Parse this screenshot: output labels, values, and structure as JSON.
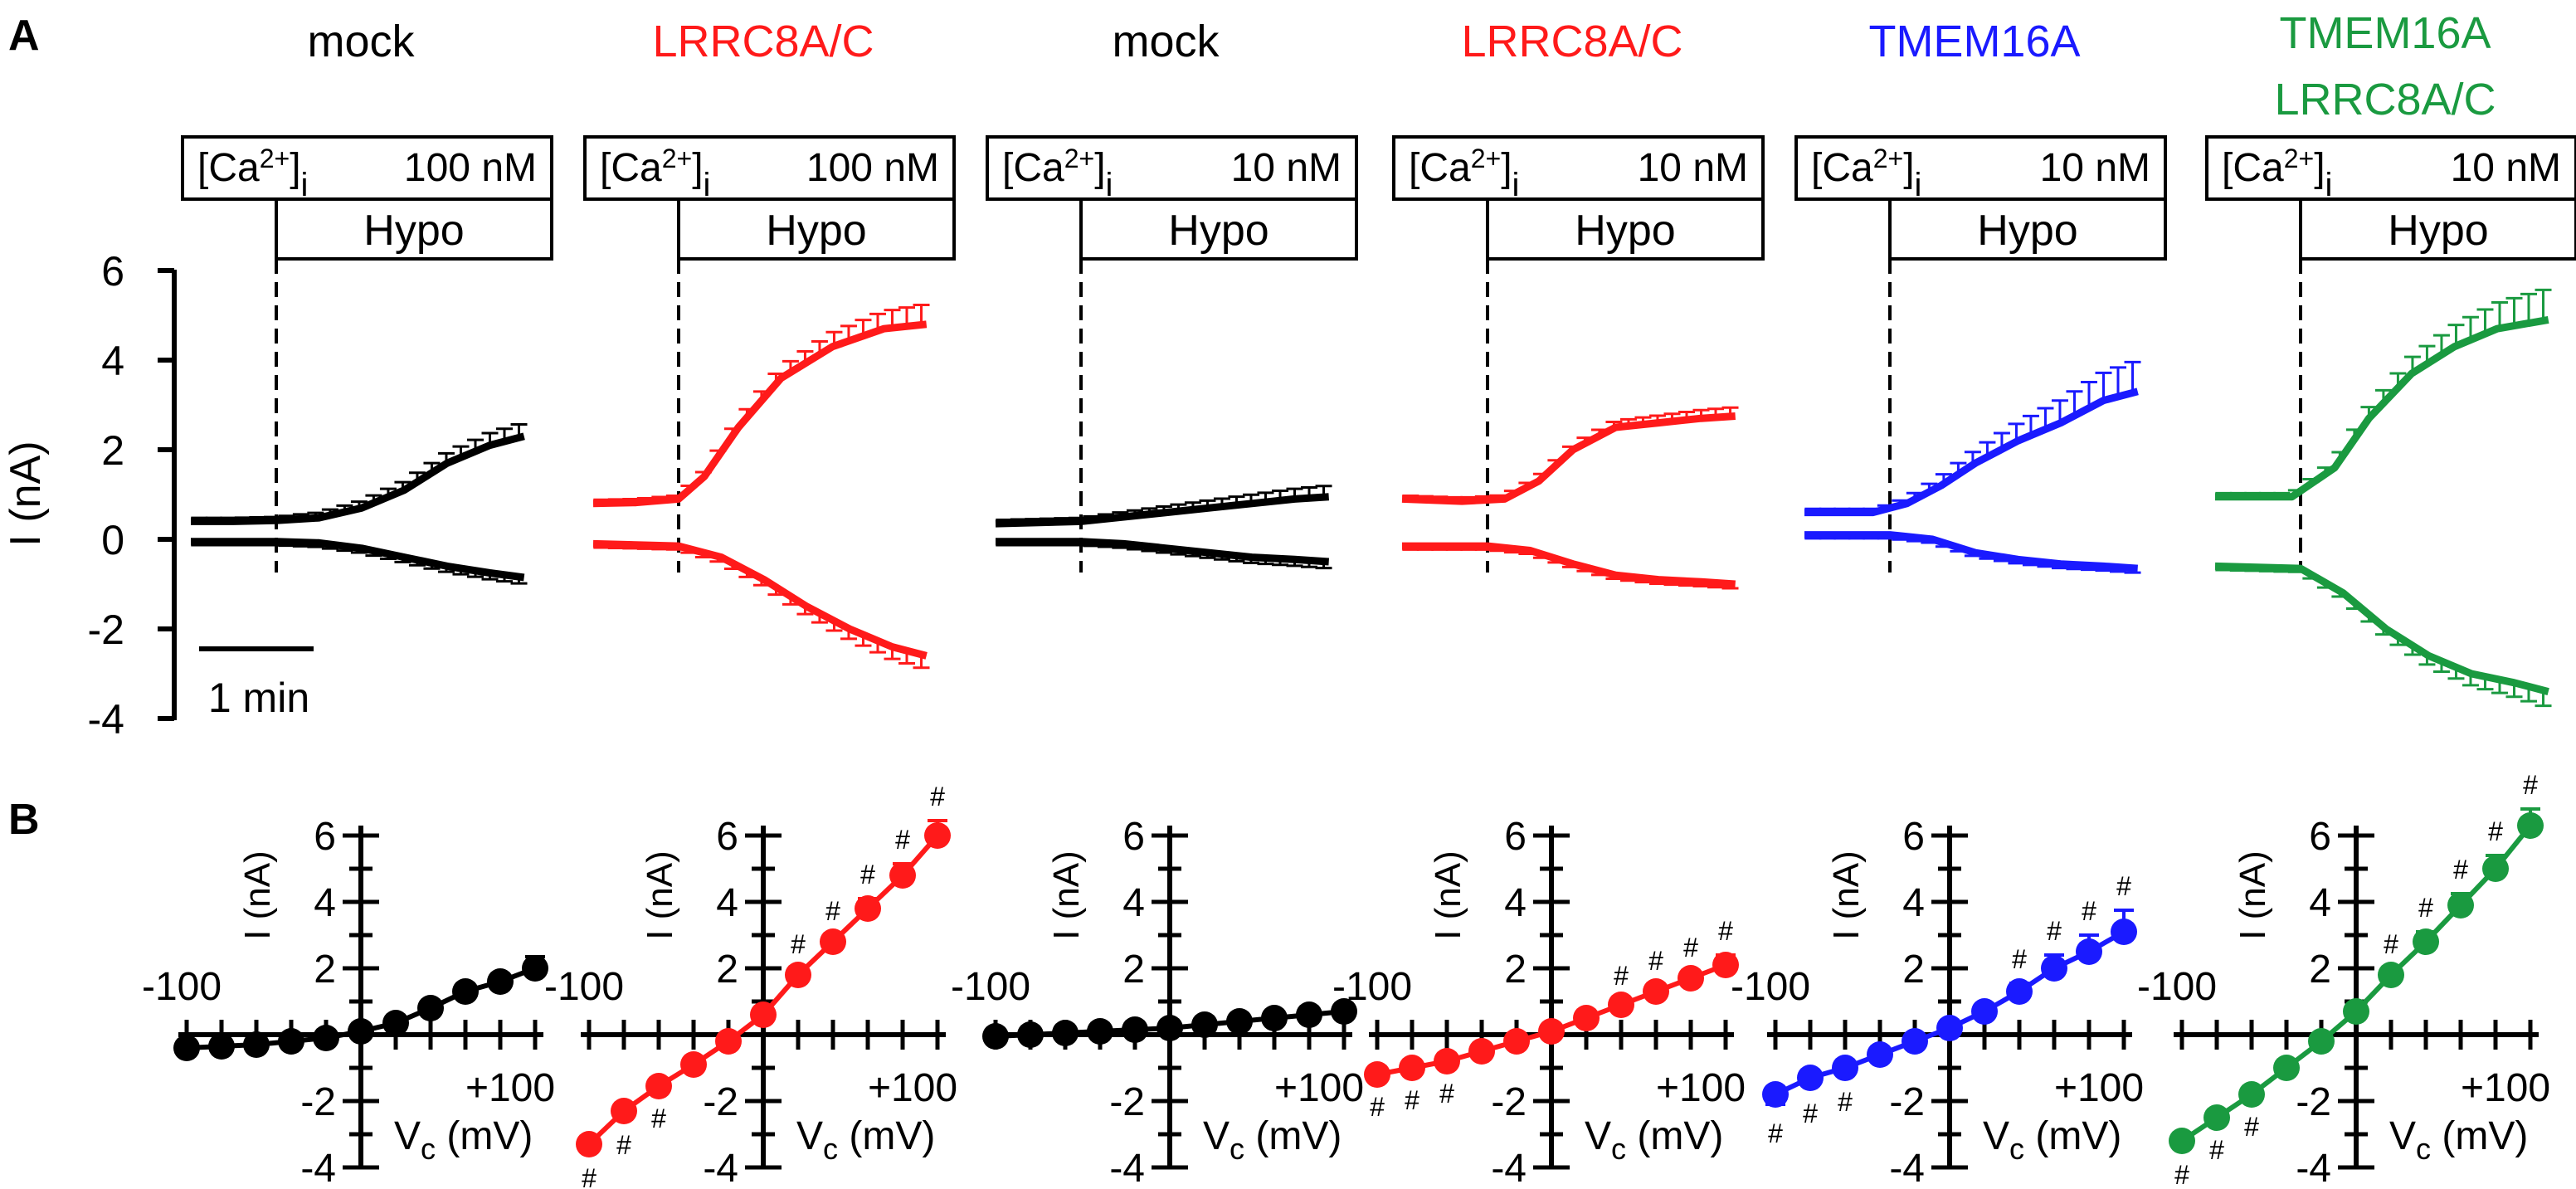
{
  "figure": {
    "panel_a_letter": "A",
    "panel_b_letter": "B",
    "scale_bar_label": "1 min",
    "ca_label": "[Ca",
    "ca_superscript": "2+",
    "ca_close": "]",
    "ca_subscript": "i",
    "hypo_label": "Hypo"
  },
  "colors": {
    "black": "#000000",
    "red": "#ff1a1a",
    "blue": "#1a1aff",
    "green": "#1a9a40"
  },
  "chart_data": [
    {
      "type": "line",
      "panel": "A",
      "ylabel": "I (nA)",
      "ylim": [
        -4,
        6
      ],
      "yticks": [
        "6",
        "4",
        "2",
        "0",
        "-2",
        "-4"
      ],
      "x_units": "min",
      "traces": [
        {
          "title": [
            "mock"
          ],
          "color": "black",
          "calcium": "100 nM",
          "condition": "Hypo",
          "outward": [
            [
              0,
              0.4
            ],
            [
              0.5,
              0.4
            ],
            [
              1,
              0.42
            ],
            [
              1.5,
              0.48
            ],
            [
              2,
              0.7
            ],
            [
              2.5,
              1.1
            ],
            [
              3,
              1.7
            ],
            [
              3.5,
              2.1
            ],
            [
              3.9,
              2.3
            ]
          ],
          "inward": [
            [
              0,
              -0.05
            ],
            [
              1,
              -0.05
            ],
            [
              1.5,
              -0.08
            ],
            [
              2,
              -0.2
            ],
            [
              2.5,
              -0.4
            ],
            [
              3,
              -0.6
            ],
            [
              3.5,
              -0.75
            ],
            [
              3.9,
              -0.85
            ]
          ],
          "error_outward": [
            [
              3,
              0.25
            ],
            [
              3.9,
              0.3
            ]
          ],
          "error_inward": [
            [
              3,
              0.15
            ],
            [
              3.9,
              0.15
            ]
          ]
        },
        {
          "title": [
            "LRRC8A/C"
          ],
          "color": "red",
          "calcium": "100 nM",
          "condition": "Hypo",
          "outward": [
            [
              0,
              0.8
            ],
            [
              0.5,
              0.82
            ],
            [
              1,
              0.9
            ],
            [
              1.3,
              1.4
            ],
            [
              1.7,
              2.5
            ],
            [
              2.2,
              3.6
            ],
            [
              2.8,
              4.3
            ],
            [
              3.4,
              4.7
            ],
            [
              3.9,
              4.8
            ]
          ],
          "inward": [
            [
              0,
              -0.1
            ],
            [
              1,
              -0.15
            ],
            [
              1.5,
              -0.4
            ],
            [
              2,
              -0.9
            ],
            [
              2.5,
              -1.5
            ],
            [
              3,
              -2.0
            ],
            [
              3.5,
              -2.4
            ],
            [
              3.9,
              -2.6
            ]
          ],
          "error_outward": [
            [
              3,
              0.4
            ],
            [
              3.9,
              0.45
            ]
          ],
          "error_inward": [
            [
              3,
              0.25
            ],
            [
              3.9,
              0.3
            ]
          ]
        },
        {
          "title": [
            "mock"
          ],
          "color": "black",
          "calcium": "10 nM",
          "condition": "Hypo",
          "outward": [
            [
              0,
              0.35
            ],
            [
              1,
              0.4
            ],
            [
              1.5,
              0.5
            ],
            [
              2,
              0.6
            ],
            [
              2.5,
              0.7
            ],
            [
              3,
              0.8
            ],
            [
              3.5,
              0.9
            ],
            [
              3.9,
              0.95
            ]
          ],
          "inward": [
            [
              0,
              -0.05
            ],
            [
              1,
              -0.05
            ],
            [
              1.5,
              -0.1
            ],
            [
              2,
              -0.2
            ],
            [
              2.5,
              -0.3
            ],
            [
              3,
              -0.4
            ],
            [
              3.5,
              -0.45
            ],
            [
              3.9,
              -0.5
            ]
          ],
          "error_outward": [
            [
              3,
              0.2
            ],
            [
              3.9,
              0.25
            ]
          ],
          "error_inward": [
            [
              3,
              0.15
            ],
            [
              3.9,
              0.15
            ]
          ]
        },
        {
          "title": [
            "LRRC8A/C"
          ],
          "color": "red",
          "calcium": "10 nM",
          "condition": "Hypo",
          "outward": [
            [
              0,
              0.9
            ],
            [
              0.7,
              0.85
            ],
            [
              1.2,
              0.9
            ],
            [
              1.6,
              1.3
            ],
            [
              2,
              2.0
            ],
            [
              2.5,
              2.5
            ],
            [
              3,
              2.6
            ],
            [
              3.5,
              2.7
            ],
            [
              3.9,
              2.75
            ]
          ],
          "inward": [
            [
              0,
              -0.15
            ],
            [
              1,
              -0.15
            ],
            [
              1.5,
              -0.25
            ],
            [
              2,
              -0.55
            ],
            [
              2.5,
              -0.8
            ],
            [
              3,
              -0.9
            ],
            [
              3.5,
              -0.95
            ],
            [
              3.9,
              -1.0
            ]
          ],
          "error_outward": [
            [
              3,
              0.25
            ],
            [
              3.9,
              0.2
            ]
          ],
          "error_inward": [
            [
              3,
              0.1
            ],
            [
              3.9,
              0.1
            ]
          ]
        },
        {
          "title": [
            "TMEM16A"
          ],
          "color": "blue",
          "calcium": "10 nM",
          "condition": "Hypo",
          "outward": [
            [
              0,
              0.6
            ],
            [
              0.8,
              0.6
            ],
            [
              1.2,
              0.8
            ],
            [
              1.6,
              1.2
            ],
            [
              2,
              1.7
            ],
            [
              2.5,
              2.2
            ],
            [
              3,
              2.6
            ],
            [
              3.5,
              3.1
            ],
            [
              3.9,
              3.3
            ]
          ],
          "inward": [
            [
              0,
              0.1
            ],
            [
              1,
              0.1
            ],
            [
              1.5,
              0.0
            ],
            [
              2,
              -0.3
            ],
            [
              2.5,
              -0.45
            ],
            [
              3,
              -0.55
            ],
            [
              3.5,
              -0.6
            ],
            [
              3.9,
              -0.65
            ]
          ],
          "error_outward": [
            [
              3,
              0.5
            ],
            [
              3.9,
              0.7
            ]
          ],
          "error_inward": [
            [
              3,
              0.1
            ],
            [
              3.9,
              0.1
            ]
          ]
        },
        {
          "title": [
            "TMEM16A",
            "LRRC8A/C"
          ],
          "color": "green",
          "calcium": "10 nM",
          "condition": "Hypo",
          "outward": [
            [
              0,
              0.95
            ],
            [
              0.9,
              0.95
            ],
            [
              1.4,
              1.6
            ],
            [
              1.8,
              2.7
            ],
            [
              2.3,
              3.7
            ],
            [
              2.8,
              4.3
            ],
            [
              3.3,
              4.7
            ],
            [
              3.9,
              4.9
            ]
          ],
          "inward": [
            [
              0,
              -0.6
            ],
            [
              1,
              -0.65
            ],
            [
              1.5,
              -1.2
            ],
            [
              2,
              -2.0
            ],
            [
              2.5,
              -2.6
            ],
            [
              3,
              -3.0
            ],
            [
              3.5,
              -3.2
            ],
            [
              3.9,
              -3.4
            ]
          ],
          "error_outward": [
            [
              3,
              0.6
            ],
            [
              3.9,
              0.7
            ]
          ],
          "error_inward": [
            [
              3,
              0.35
            ],
            [
              3.9,
              0.35
            ]
          ]
        }
      ]
    },
    {
      "type": "scatter",
      "panel": "B",
      "xlabel": "V",
      "xlabel_sub": "c",
      "xlabel_unit": " (mV)",
      "ylabel": "I (nA)",
      "xlim": [
        -100,
        100
      ],
      "ylim": [
        -4,
        6
      ],
      "x_tick_labels": [
        "-100",
        "+100"
      ],
      "y_tick_labels": [
        "6",
        "4",
        "2",
        "-2",
        "-4"
      ],
      "x": [
        -100,
        -80,
        -60,
        -40,
        -20,
        0,
        20,
        40,
        60,
        80,
        100
      ],
      "series": [
        {
          "name": "mock 100 nM",
          "color": "black",
          "values": [
            -0.4,
            -0.35,
            -0.3,
            -0.2,
            -0.1,
            0.1,
            0.35,
            0.8,
            1.3,
            1.6,
            2.0
          ],
          "error": [
            0,
            0,
            0,
            0,
            0,
            0,
            0,
            0,
            0.1,
            0.2,
            0.35
          ],
          "sig": []
        },
        {
          "name": "LRRC8A/C 100 nM",
          "color": "red",
          "values": [
            -3.3,
            -2.3,
            -1.55,
            -0.9,
            -0.2,
            0.6,
            1.8,
            2.8,
            3.8,
            4.8,
            6.0
          ],
          "error": [
            0.15,
            0.15,
            0.1,
            0,
            0,
            0,
            0.2,
            0.2,
            0.3,
            0.35,
            0.45
          ],
          "sig": [
            -100,
            -80,
            -60,
            20,
            40,
            60,
            80,
            100
          ]
        },
        {
          "name": "mock 10 nM",
          "color": "black",
          "values": [
            -0.05,
            0,
            0.05,
            0.1,
            0.15,
            0.2,
            0.3,
            0.4,
            0.5,
            0.6,
            0.7
          ],
          "error": [
            0.2,
            0.2,
            0.15,
            0.1,
            0.1,
            0.1,
            0.1,
            0.1,
            0.1,
            0.1,
            0.1
          ],
          "sig": []
        },
        {
          "name": "LRRC8A/C 10 nM",
          "color": "red",
          "values": [
            -1.2,
            -1.0,
            -0.8,
            -0.5,
            -0.2,
            0.1,
            0.5,
            0.9,
            1.3,
            1.7,
            2.1
          ],
          "error": [
            0.1,
            0.1,
            0.1,
            0,
            0,
            0,
            0,
            0.15,
            0.2,
            0.2,
            0.3
          ],
          "sig": [
            -100,
            -80,
            -60,
            40,
            60,
            80,
            100
          ]
        },
        {
          "name": "TMEM16A 10 nM",
          "color": "blue",
          "values": [
            -1.8,
            -1.3,
            -1.0,
            -0.6,
            -0.2,
            0.2,
            0.7,
            1.3,
            2.0,
            2.5,
            3.1
          ],
          "error": [
            0.3,
            0.2,
            0.15,
            0.1,
            0,
            0,
            0.1,
            0.25,
            0.4,
            0.5,
            0.65
          ],
          "sig": [
            -100,
            -80,
            -60,
            40,
            60,
            80,
            100
          ]
        },
        {
          "name": "TMEM16A + LRRC8A/C 10 nM",
          "color": "green",
          "values": [
            -3.2,
            -2.5,
            -1.8,
            -1.0,
            -0.2,
            0.7,
            1.8,
            2.8,
            3.9,
            5.0,
            6.3
          ],
          "error": [
            0.15,
            0.1,
            0.1,
            0,
            0,
            0.1,
            0.2,
            0.3,
            0.35,
            0.4,
            0.5
          ],
          "sig": [
            -100,
            -80,
            -60,
            20,
            40,
            60,
            80,
            100
          ]
        }
      ]
    }
  ]
}
